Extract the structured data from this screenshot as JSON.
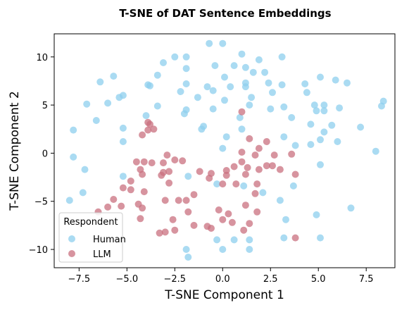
{
  "chart_data": {
    "type": "scatter",
    "title": "T-SNE of DAT Sentence Embeddings",
    "xlabel": "T-SNE Component 1",
    "ylabel": "T-SNE Component 2",
    "xlim": [
      -8.8,
      9.0
    ],
    "ylim": [
      -11.9,
      12.4
    ],
    "xticks": [
      -7.5,
      -5.0,
      -2.5,
      0.0,
      2.5,
      5.0,
      7.5
    ],
    "yticks": [
      -10,
      -5,
      0,
      5,
      10
    ],
    "xtick_labels": [
      "−7.5",
      "−5.0",
      "−2.5",
      "0.0",
      "2.5",
      "5.0",
      "7.5"
    ],
    "ytick_labels": [
      "−10",
      "−5",
      "0",
      "5",
      "10"
    ],
    "grid": false,
    "legend": {
      "title": "Respondent",
      "position": "lower-left"
    },
    "series": [
      {
        "name": "Human",
        "color": "#8ecfed",
        "points": [
          [
            0.0,
            11.4
          ],
          [
            -0.7,
            11.4
          ],
          [
            1.0,
            10.3
          ],
          [
            -2.5,
            10.0
          ],
          [
            -1.9,
            10.0
          ],
          [
            1.9,
            9.7
          ],
          [
            3.1,
            10.0
          ],
          [
            -3.1,
            9.4
          ],
          [
            -0.4,
            9.1
          ],
          [
            0.6,
            9.1
          ],
          [
            1.2,
            8.9
          ],
          [
            1.6,
            8.4
          ],
          [
            2.2,
            8.4
          ],
          [
            -3.4,
            8.1
          ],
          [
            0.1,
            7.9
          ],
          [
            -5.7,
            8.0
          ],
          [
            -1.9,
            8.8
          ],
          [
            5.1,
            7.9
          ],
          [
            5.9,
            7.6
          ],
          [
            6.5,
            7.3
          ],
          [
            -6.4,
            7.4
          ],
          [
            -1.9,
            7.2
          ],
          [
            -0.8,
            6.9
          ],
          [
            1.2,
            7.3
          ],
          [
            2.4,
            7.3
          ],
          [
            -3.9,
            7.1
          ],
          [
            -3.8,
            7.0
          ],
          [
            0.4,
            6.9
          ],
          [
            1.2,
            6.9
          ],
          [
            3.1,
            7.1
          ],
          [
            4.3,
            7.2
          ],
          [
            -0.5,
            6.5
          ],
          [
            -2.2,
            6.4
          ],
          [
            2.6,
            6.3
          ],
          [
            4.4,
            6.3
          ],
          [
            -5.2,
            6.0
          ],
          [
            -5.4,
            5.8
          ],
          [
            -1.3,
            5.8
          ],
          [
            1.5,
            5.8
          ],
          [
            -6.0,
            5.2
          ],
          [
            -7.1,
            5.1
          ],
          [
            -3.4,
            4.9
          ],
          [
            0.1,
            5.5
          ],
          [
            1.4,
            5.0
          ],
          [
            3.2,
            4.8
          ],
          [
            2.5,
            4.6
          ],
          [
            5.3,
            5.0
          ],
          [
            4.8,
            5.0
          ],
          [
            6.1,
            4.7
          ],
          [
            8.4,
            5.4
          ],
          [
            8.3,
            4.9
          ],
          [
            -1.9,
            4.5
          ],
          [
            -0.5,
            4.6
          ],
          [
            -2.0,
            4.1
          ],
          [
            4.9,
            4.4
          ],
          [
            5.3,
            4.4
          ],
          [
            -4.0,
            3.9
          ],
          [
            -6.6,
            3.4
          ],
          [
            -1.0,
            2.8
          ],
          [
            0.9,
            3.7
          ],
          [
            3.6,
            3.7
          ],
          [
            4.6,
            3.0
          ],
          [
            -7.8,
            2.4
          ],
          [
            -5.2,
            2.6
          ],
          [
            -1.1,
            2.5
          ],
          [
            1.0,
            2.5
          ],
          [
            5.7,
            2.9
          ],
          [
            7.2,
            2.7
          ],
          [
            5.3,
            2.2
          ],
          [
            0.2,
            1.7
          ],
          [
            3.2,
            1.7
          ],
          [
            5.1,
            1.4
          ],
          [
            -5.2,
            1.2
          ],
          [
            6.0,
            1.2
          ],
          [
            4.6,
            0.9
          ],
          [
            0.0,
            0.5
          ],
          [
            3.8,
            0.8
          ],
          [
            8.0,
            0.2
          ],
          [
            -7.8,
            -0.4
          ],
          [
            -7.2,
            -1.7
          ],
          [
            5.1,
            -1.2
          ],
          [
            -5.2,
            -2.4
          ],
          [
            -1.8,
            -2.4
          ],
          [
            -0.3,
            -3.2
          ],
          [
            1.1,
            -3.4
          ],
          [
            3.7,
            -3.4
          ],
          [
            -7.3,
            -4.1
          ],
          [
            2.1,
            -4.1
          ],
          [
            -8.0,
            -4.9
          ],
          [
            3.0,
            -4.9
          ],
          [
            6.7,
            -5.7
          ],
          [
            4.9,
            -6.4
          ],
          [
            3.3,
            -6.9
          ],
          [
            0.6,
            -9.0
          ],
          [
            1.4,
            -9.0
          ],
          [
            -0.3,
            -9.0
          ],
          [
            3.2,
            -8.8
          ],
          [
            5.1,
            -8.8
          ],
          [
            -1.9,
            -10.0
          ],
          [
            0.0,
            -10.0
          ],
          [
            1.4,
            -10.0
          ],
          [
            -1.8,
            -10.8
          ]
        ]
      },
      {
        "name": "LLM",
        "color": "#c9707f",
        "points": [
          [
            1.0,
            4.3
          ],
          [
            -3.9,
            3.2
          ],
          [
            -3.8,
            3.0
          ],
          [
            -3.6,
            2.5
          ],
          [
            -3.9,
            2.4
          ],
          [
            -4.2,
            1.9
          ],
          [
            1.4,
            1.5
          ],
          [
            2.3,
            1.2
          ],
          [
            -2.9,
            -0.2
          ],
          [
            1.9,
            0.5
          ],
          [
            1.7,
            -0.2
          ],
          [
            1.0,
            0.1
          ],
          [
            2.7,
            -0.2
          ],
          [
            3.6,
            -0.1
          ],
          [
            -4.1,
            -0.9
          ],
          [
            -4.5,
            -0.9
          ],
          [
            -3.7,
            -1.0
          ],
          [
            -3.1,
            -1.0
          ],
          [
            -2.5,
            -0.7
          ],
          [
            -2.1,
            -0.8
          ],
          [
            1.0,
            -0.9
          ],
          [
            1.3,
            -1.5
          ],
          [
            2.6,
            -1.3
          ],
          [
            -4.3,
            -1.7
          ],
          [
            -3.1,
            -2.0
          ],
          [
            -2.8,
            -1.9
          ],
          [
            -1.2,
            -1.9
          ],
          [
            -0.6,
            -2.1
          ],
          [
            0.2,
            -1.8
          ],
          [
            0.6,
            -1.4
          ],
          [
            2.3,
            -1.3
          ],
          [
            1.9,
            -1.7
          ],
          [
            3.0,
            -1.7
          ],
          [
            -4.2,
            -2.2
          ],
          [
            -3.2,
            -2.3
          ],
          [
            -0.7,
            -2.6
          ],
          [
            0.2,
            -2.3
          ],
          [
            1.2,
            -2.2
          ],
          [
            3.8,
            -2.2
          ],
          [
            -4.8,
            -2.9
          ],
          [
            -2.8,
            -3.1
          ],
          [
            0.7,
            -3.2
          ],
          [
            0.0,
            -3.2
          ],
          [
            1.8,
            -3.2
          ],
          [
            -5.2,
            -3.6
          ],
          [
            -4.8,
            -3.8
          ],
          [
            -4.1,
            -4.0
          ],
          [
            -1.5,
            -4.3
          ],
          [
            1.7,
            -4.2
          ],
          [
            -5.7,
            -4.8
          ],
          [
            -3.0,
            -4.9
          ],
          [
            -2.3,
            -4.9
          ],
          [
            -1.9,
            -4.9
          ],
          [
            -4.4,
            -5.3
          ],
          [
            -5.3,
            -5.5
          ],
          [
            -6.0,
            -5.6
          ],
          [
            1.2,
            -5.4
          ],
          [
            -6.5,
            -6.1
          ],
          [
            -4.2,
            -5.7
          ],
          [
            -1.8,
            -6.1
          ],
          [
            -0.2,
            -5.9
          ],
          [
            0.3,
            -6.3
          ],
          [
            0.0,
            -6.9
          ],
          [
            1.8,
            -6.1
          ],
          [
            -4.3,
            -6.8
          ],
          [
            -2.6,
            -6.9
          ],
          [
            0.5,
            -7.2
          ],
          [
            1.4,
            -7.3
          ],
          [
            -1.5,
            -7.5
          ],
          [
            -0.8,
            -7.6
          ],
          [
            -0.6,
            -7.8
          ],
          [
            1.1,
            -8.0
          ],
          [
            -2.5,
            -8.0
          ],
          [
            -3.0,
            -8.2
          ],
          [
            -3.3,
            -8.3
          ],
          [
            3.8,
            -8.8
          ]
        ]
      }
    ]
  }
}
